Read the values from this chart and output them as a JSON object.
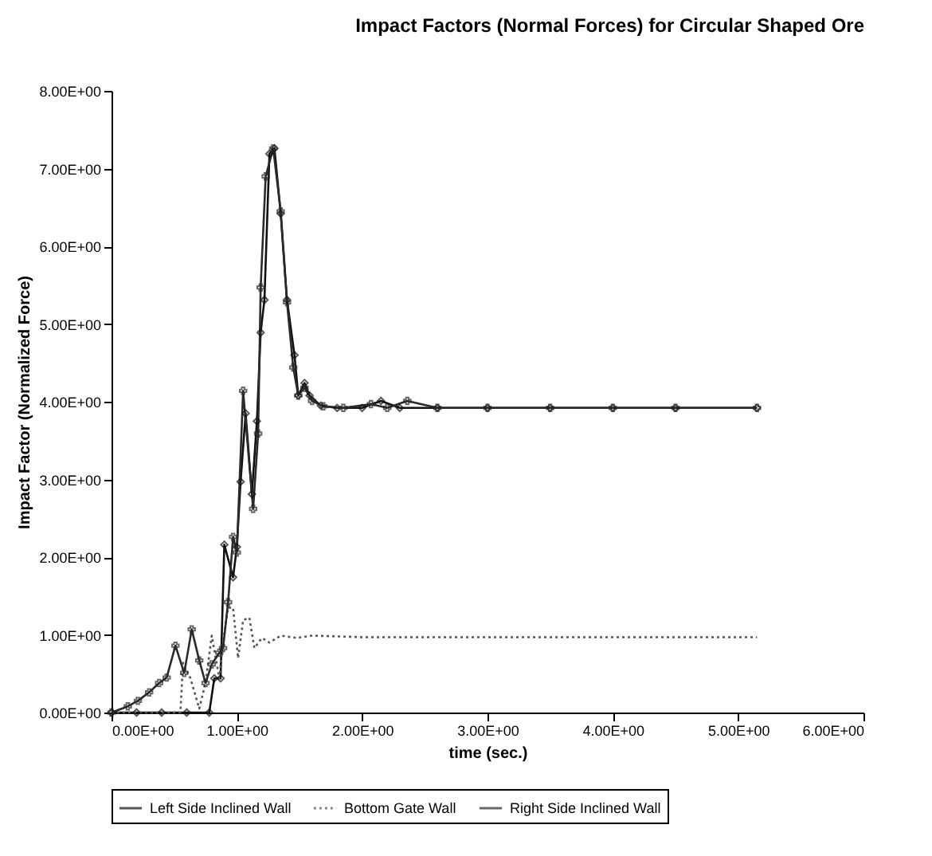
{
  "chart_data": {
    "type": "line",
    "title": "Impact Factors (Normal Forces) for Circular Shaped Ore",
    "xlabel": "time (sec.)",
    "ylabel": "Impact Factor (Normalized Force)",
    "xlim": [
      0,
      6
    ],
    "xticks": [
      {
        "value": 0,
        "label": "0.00E+00"
      },
      {
        "value": 1,
        "label": "1.00E+00"
      },
      {
        "value": 2,
        "label": "2.00E+00"
      },
      {
        "value": 3,
        "label": "3.00E+00"
      },
      {
        "value": 4,
        "label": "4.00E+00"
      },
      {
        "value": 5,
        "label": "5.00E+00"
      },
      {
        "value": 6,
        "label": "6.00E+00"
      }
    ],
    "ylim": [
      0,
      8
    ],
    "yticks": [
      {
        "value": 0,
        "label": "0.00E+00"
      },
      {
        "value": 1,
        "label": "1.00E+00"
      },
      {
        "value": 2,
        "label": "2.00E+00"
      },
      {
        "value": 3,
        "label": "3.00E+00"
      },
      {
        "value": 4,
        "label": "4.00E+00"
      },
      {
        "value": 5,
        "label": "5.00E+00"
      },
      {
        "value": 6,
        "label": "6.00E+00"
      },
      {
        "value": 7,
        "label": "7.00E+00"
      },
      {
        "value": 8,
        "label": "8.00E+00"
      }
    ],
    "grid": false,
    "legend": "bottom",
    "series": [
      {
        "name": "Left Side Inclined Wall",
        "color": "#111111",
        "marker": "diamond",
        "line_style": "solid",
        "x": [
          0,
          0.2,
          0.4,
          0.6,
          0.78,
          0.82,
          0.87,
          0.9,
          0.97,
          1.0,
          1.03,
          1.07,
          1.12,
          1.16,
          1.19,
          1.22,
          1.26,
          1.3,
          1.35,
          1.4,
          1.46,
          1.49,
          1.54,
          1.58,
          1.67,
          1.8,
          2.0,
          2.15,
          2.3,
          2.6,
          3.0,
          3.5,
          4.0,
          4.5,
          5.15
        ],
        "values": [
          0,
          0,
          0,
          0,
          0,
          0.44,
          0.44,
          2.16,
          1.74,
          2.13,
          2.97,
          3.85,
          2.81,
          3.75,
          4.89,
          5.31,
          7.19,
          7.26,
          6.42,
          5.31,
          4.6,
          4.08,
          4.24,
          4.08,
          3.95,
          3.92,
          3.92,
          4.01,
          3.92,
          3.92,
          3.92,
          3.92,
          3.92,
          3.92,
          3.92
        ]
      },
      {
        "name": "Bottom Gate Wall",
        "color": "#555555",
        "marker": "none",
        "line_style": "dotted",
        "x": [
          0,
          0.55,
          0.57,
          0.63,
          0.7,
          0.75,
          0.8,
          0.86,
          0.89,
          0.93,
          0.97,
          1.01,
          1.05,
          1.1,
          1.14,
          1.2,
          1.26,
          1.35,
          1.48,
          1.6,
          2.0,
          3.0,
          4.0,
          5.15
        ],
        "values": [
          0,
          0,
          0.64,
          0.44,
          0.05,
          0.38,
          0.99,
          0.44,
          0.9,
          1.35,
          1.35,
          0.7,
          1.19,
          1.22,
          0.83,
          0.96,
          0.9,
          0.99,
          0.96,
          0.99,
          0.97,
          0.97,
          0.97,
          0.97
        ]
      },
      {
        "name": "Right Side Inclined Wall",
        "color": "#2a2a2a",
        "marker": "cross",
        "line_style": "solid",
        "x": [
          0,
          0.13,
          0.21,
          0.3,
          0.38,
          0.44,
          0.51,
          0.58,
          0.64,
          0.7,
          0.75,
          0.8,
          0.86,
          0.89,
          0.93,
          0.97,
          1.0,
          1.05,
          1.13,
          1.17,
          1.19,
          1.23,
          1.29,
          1.35,
          1.4,
          1.45,
          1.49,
          1.54,
          1.6,
          1.69,
          1.85,
          2.07,
          2.2,
          2.36,
          2.6,
          3.0,
          3.5,
          4.0,
          4.5,
          5.15
        ],
        "values": [
          0,
          0.08,
          0.15,
          0.26,
          0.38,
          0.45,
          0.86,
          0.51,
          1.07,
          0.67,
          0.38,
          0.62,
          0.77,
          0.83,
          1.42,
          2.26,
          2.06,
          4.14,
          2.62,
          3.59,
          5.47,
          6.9,
          7.26,
          6.45,
          5.28,
          4.44,
          4.08,
          4.18,
          4.01,
          3.94,
          3.92,
          3.97,
          3.92,
          4.01,
          3.92,
          3.92,
          3.92,
          3.92,
          3.92,
          3.92
        ]
      }
    ]
  }
}
